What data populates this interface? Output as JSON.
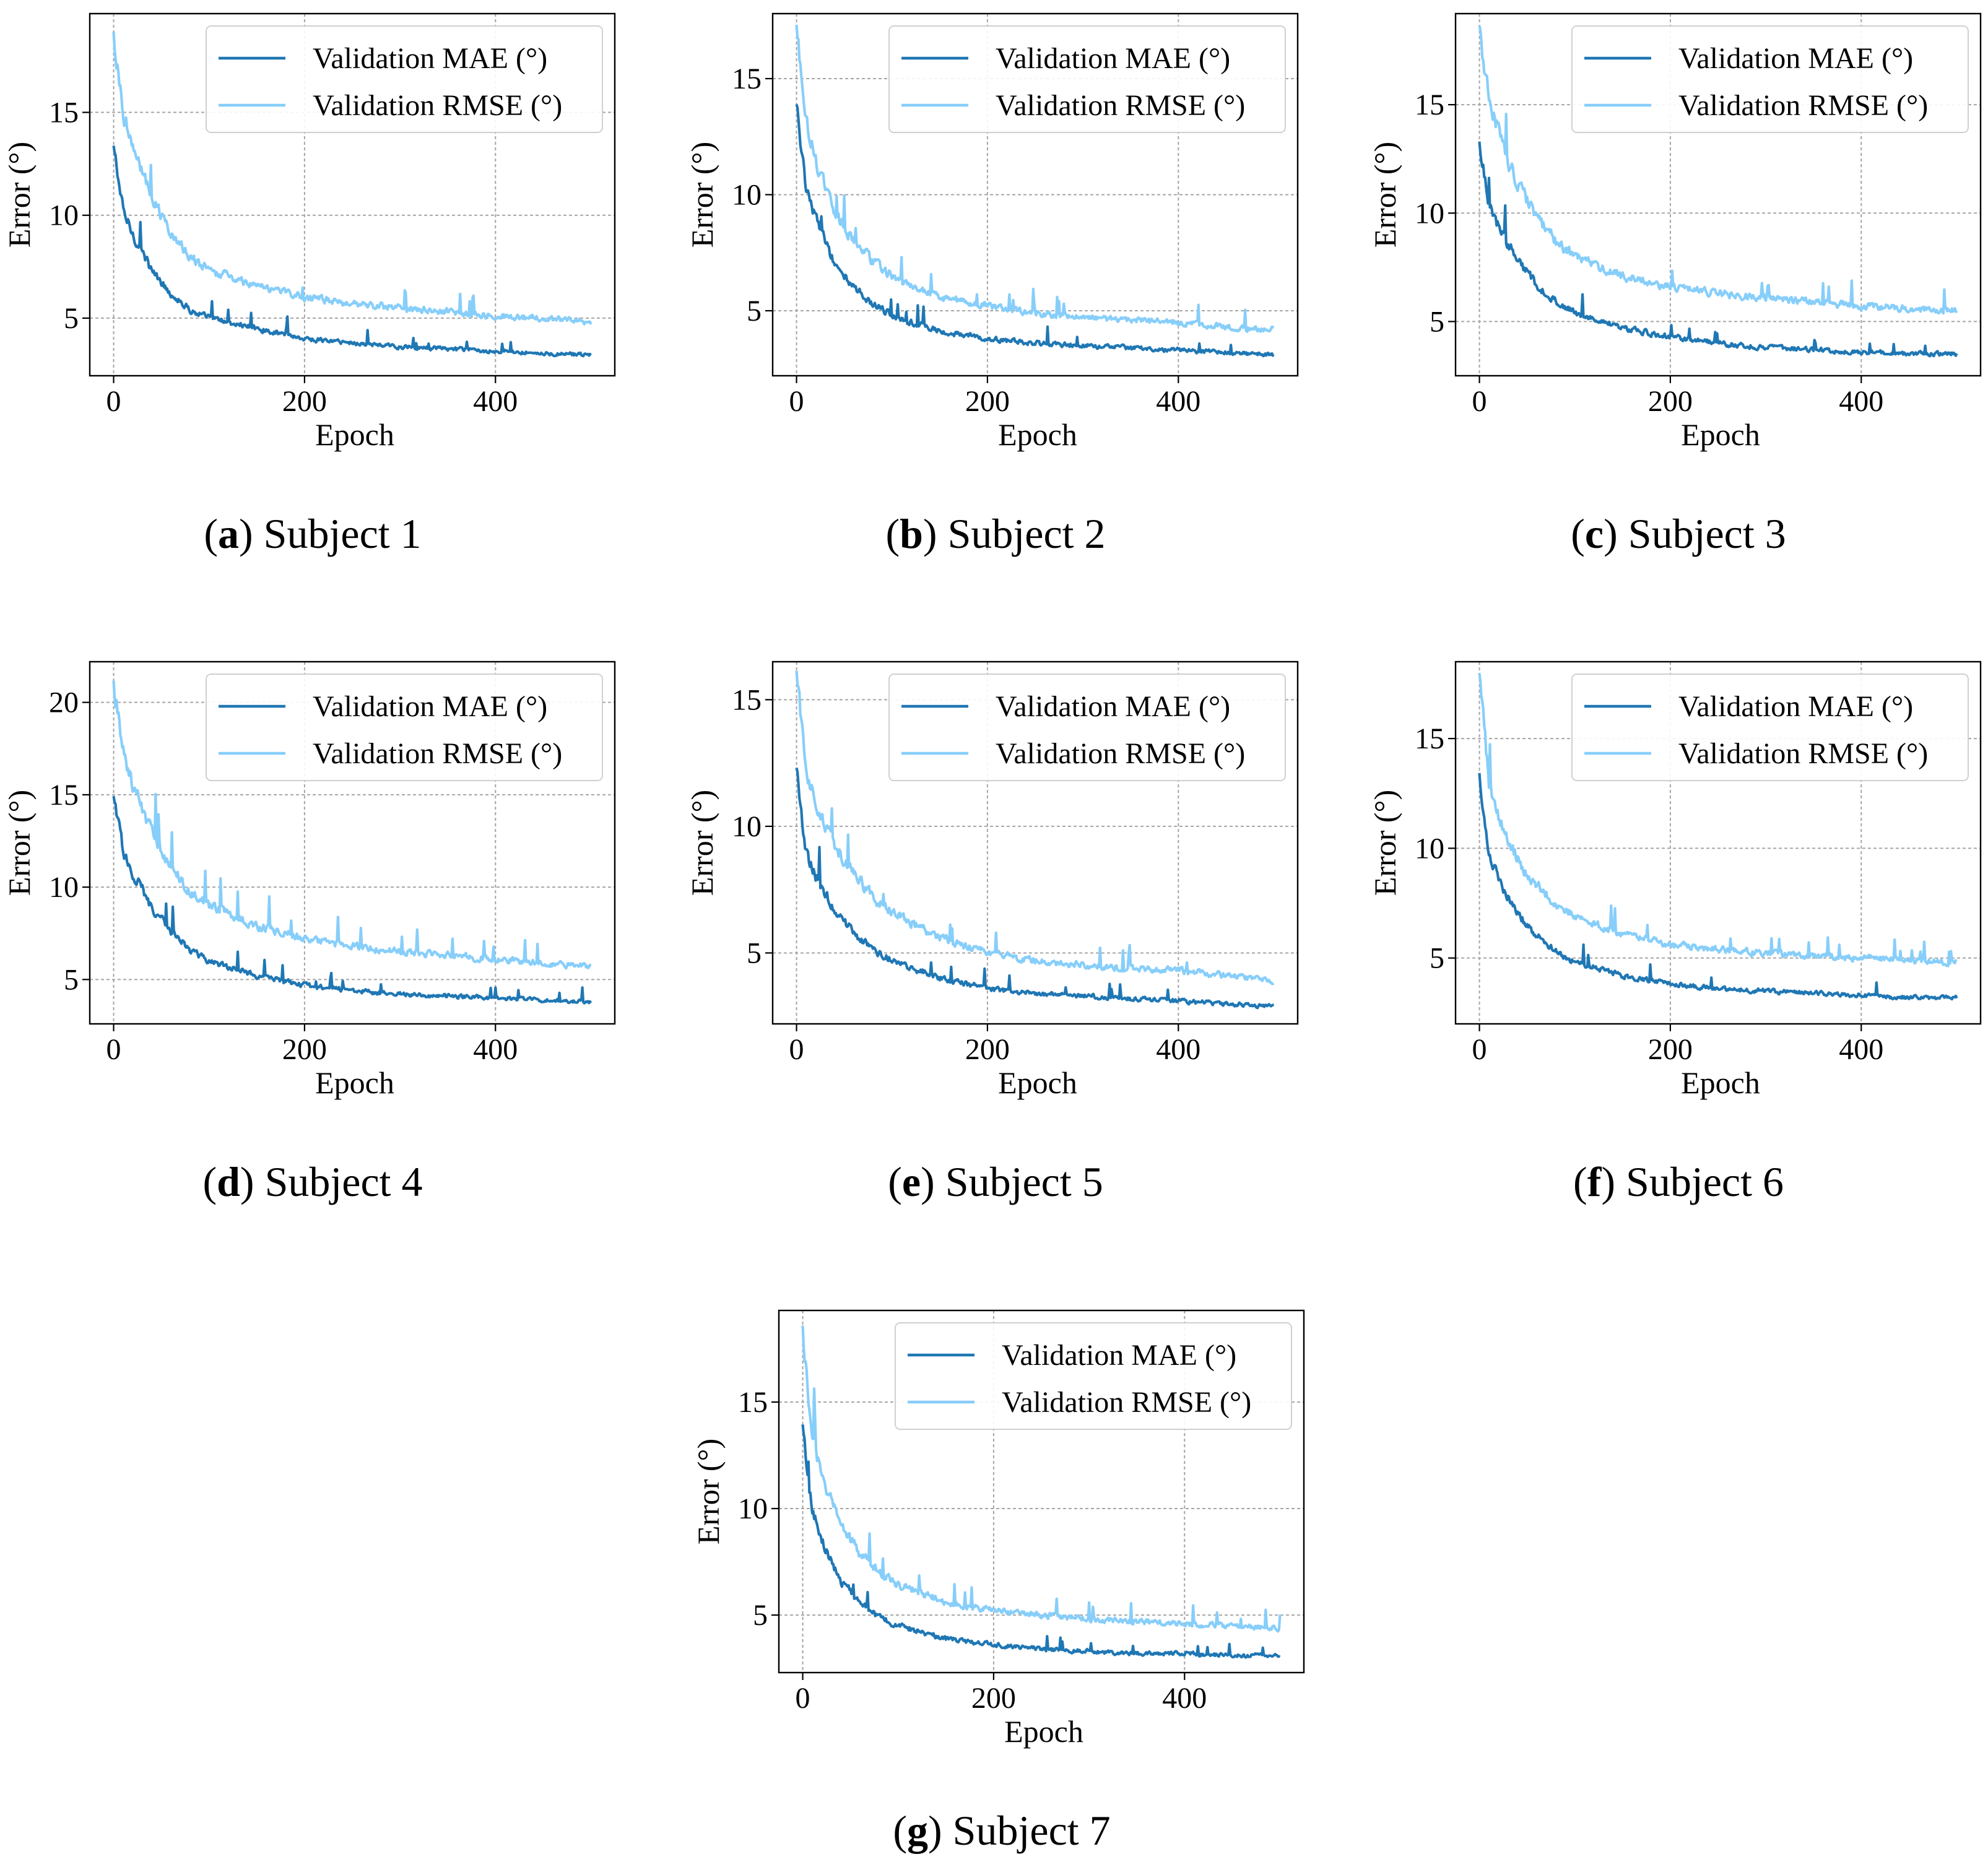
{
  "figure": {
    "legend_labels": [
      "Validation MAE (°)",
      "Validation RMSE (°)"
    ],
    "colors": {
      "mae": "#1f77b4",
      "rmse": "#87cefa",
      "grid": "#a6a6a6",
      "axis": "#000000"
    }
  },
  "chart_data": [
    {
      "type": "line",
      "caption_letter": "a",
      "caption_text": "Subject 1",
      "xlabel": "Epoch",
      "ylabel": "Error (°)",
      "xlim": [
        -25,
        525
      ],
      "ylim": [
        2.2,
        19.8
      ],
      "xticks": [
        0,
        200,
        400
      ],
      "yticks": [
        5,
        10,
        15
      ],
      "grid": true,
      "legend_position": "upper-right",
      "series": [
        {
          "name": "Validation MAE (°)",
          "x": [
            0,
            10,
            20,
            40,
            60,
            80,
            100,
            150,
            200,
            250,
            300,
            350,
            400,
            450,
            500
          ],
          "y": [
            13.3,
            10.2,
            9.1,
            7.3,
            6.2,
            5.4,
            5.0,
            4.5,
            4.0,
            3.8,
            3.6,
            3.5,
            3.4,
            3.3,
            3.2
          ]
        },
        {
          "name": "Validation RMSE (°)",
          "x": [
            0,
            10,
            20,
            40,
            60,
            80,
            100,
            150,
            200,
            250,
            300,
            350,
            400,
            450,
            500
          ],
          "y": [
            18.8,
            15.0,
            13.3,
            10.8,
            9.1,
            8.0,
            7.3,
            6.6,
            6.0,
            5.7,
            5.5,
            5.3,
            5.1,
            5.0,
            4.8
          ]
        }
      ]
    },
    {
      "type": "line",
      "caption_letter": "b",
      "caption_text": "Subject 2",
      "xlabel": "Epoch",
      "ylabel": "Error (°)",
      "xlim": [
        -25,
        525
      ],
      "ylim": [
        2.2,
        17.8
      ],
      "xticks": [
        0,
        200,
        400
      ],
      "yticks": [
        5,
        10,
        15
      ],
      "grid": true,
      "legend_position": "upper-right",
      "series": [
        {
          "name": "Validation MAE (°)",
          "x": [
            0,
            10,
            20,
            40,
            60,
            80,
            100,
            150,
            200,
            250,
            300,
            350,
            400,
            450,
            500
          ],
          "y": [
            13.8,
            10.4,
            9.0,
            7.0,
            6.0,
            5.3,
            4.8,
            4.1,
            3.8,
            3.6,
            3.5,
            3.4,
            3.3,
            3.2,
            3.1
          ]
        },
        {
          "name": "Validation RMSE (°)",
          "x": [
            0,
            10,
            20,
            40,
            60,
            80,
            100,
            150,
            200,
            250,
            300,
            350,
            400,
            450,
            500
          ],
          "y": [
            17.2,
            13.3,
            11.5,
            9.2,
            8.0,
            7.1,
            6.5,
            5.6,
            5.2,
            4.9,
            4.7,
            4.6,
            4.5,
            4.3,
            4.2
          ]
        }
      ]
    },
    {
      "type": "line",
      "caption_letter": "c",
      "caption_text": "Subject 3",
      "xlabel": "Epoch",
      "ylabel": "Error (°)",
      "xlim": [
        -25,
        525
      ],
      "ylim": [
        2.5,
        19.2
      ],
      "xticks": [
        0,
        200,
        400
      ],
      "yticks": [
        5,
        10,
        15
      ],
      "grid": true,
      "legend_position": "upper-right",
      "series": [
        {
          "name": "Validation MAE (°)",
          "x": [
            0,
            10,
            20,
            40,
            60,
            80,
            100,
            150,
            200,
            250,
            300,
            350,
            400,
            450,
            500
          ],
          "y": [
            13.2,
            10.5,
            9.4,
            7.8,
            6.7,
            5.9,
            5.4,
            4.7,
            4.3,
            4.0,
            3.8,
            3.7,
            3.6,
            3.5,
            3.5
          ]
        },
        {
          "name": "Validation RMSE (°)",
          "x": [
            0,
            10,
            20,
            40,
            60,
            80,
            100,
            150,
            200,
            250,
            300,
            350,
            400,
            450,
            500
          ],
          "y": [
            18.5,
            15.3,
            13.7,
            11.3,
            9.8,
            8.7,
            8.0,
            7.1,
            6.6,
            6.3,
            6.1,
            5.9,
            5.7,
            5.6,
            5.5
          ]
        }
      ]
    },
    {
      "type": "line",
      "caption_letter": "d",
      "caption_text": "Subject 4",
      "xlabel": "Epoch",
      "ylabel": "Error (°)",
      "xlim": [
        -25,
        525
      ],
      "ylim": [
        2.6,
        22.2
      ],
      "xticks": [
        0,
        200,
        400
      ],
      "yticks": [
        5,
        10,
        15,
        20
      ],
      "grid": true,
      "legend_position": "upper-right",
      "series": [
        {
          "name": "Validation MAE (°)",
          "x": [
            0,
            10,
            20,
            40,
            60,
            80,
            100,
            150,
            200,
            250,
            300,
            350,
            400,
            450,
            500
          ],
          "y": [
            14.8,
            12.0,
            10.8,
            8.9,
            7.6,
            6.6,
            6.0,
            5.2,
            4.7,
            4.4,
            4.2,
            4.1,
            4.0,
            3.9,
            3.8
          ]
        },
        {
          "name": "Validation RMSE (°)",
          "x": [
            0,
            10,
            20,
            40,
            60,
            80,
            100,
            150,
            200,
            250,
            300,
            350,
            400,
            450,
            500
          ],
          "y": [
            21.0,
            17.3,
            15.6,
            12.9,
            11.1,
            9.8,
            9.0,
            7.9,
            7.2,
            6.8,
            6.5,
            6.3,
            6.1,
            5.9,
            5.7
          ]
        }
      ]
    },
    {
      "type": "line",
      "caption_letter": "e",
      "caption_text": "Subject 5",
      "xlabel": "Epoch",
      "ylabel": "Error (°)",
      "xlim": [
        -25,
        525
      ],
      "ylim": [
        2.2,
        16.5
      ],
      "xticks": [
        0,
        200,
        400
      ],
      "yticks": [
        5,
        10,
        15
      ],
      "grid": true,
      "legend_position": "upper-right",
      "series": [
        {
          "name": "Validation MAE (°)",
          "x": [
            0,
            10,
            20,
            40,
            60,
            80,
            100,
            150,
            200,
            250,
            300,
            350,
            400,
            450,
            500
          ],
          "y": [
            12.2,
            9.0,
            8.0,
            6.7,
            5.8,
            5.1,
            4.7,
            4.0,
            3.6,
            3.4,
            3.3,
            3.2,
            3.1,
            3.0,
            2.9
          ]
        },
        {
          "name": "Validation RMSE (°)",
          "x": [
            0,
            10,
            20,
            40,
            60,
            80,
            100,
            150,
            200,
            250,
            300,
            350,
            400,
            450,
            500
          ],
          "y": [
            16.0,
            12.3,
            11.0,
            9.3,
            8.1,
            7.2,
            6.6,
            5.6,
            5.0,
            4.7,
            4.5,
            4.4,
            4.3,
            4.1,
            3.9
          ]
        }
      ]
    },
    {
      "type": "line",
      "caption_letter": "f",
      "caption_text": "Subject 6",
      "xlabel": "Epoch",
      "ylabel": "Error (°)",
      "xlim": [
        -25,
        525
      ],
      "ylim": [
        2.0,
        18.5
      ],
      "xticks": [
        0,
        200,
        400
      ],
      "yticks": [
        5,
        10,
        15
      ],
      "grid": true,
      "legend_position": "upper-right",
      "series": [
        {
          "name": "Validation MAE (°)",
          "x": [
            0,
            10,
            20,
            40,
            60,
            80,
            100,
            150,
            200,
            250,
            300,
            350,
            400,
            450,
            500
          ],
          "y": [
            13.3,
            9.8,
            8.6,
            7.0,
            6.0,
            5.3,
            4.8,
            4.2,
            3.8,
            3.6,
            3.5,
            3.4,
            3.3,
            3.2,
            3.2
          ]
        },
        {
          "name": "Validation RMSE (°)",
          "x": [
            0,
            10,
            20,
            40,
            60,
            80,
            100,
            150,
            200,
            250,
            300,
            350,
            400,
            450,
            500
          ],
          "y": [
            17.8,
            13.0,
            11.5,
            9.5,
            8.3,
            7.5,
            6.9,
            6.1,
            5.6,
            5.4,
            5.2,
            5.1,
            5.0,
            4.9,
            4.8
          ]
        }
      ]
    },
    {
      "type": "line",
      "caption_letter": "g",
      "caption_text": "Subject 7",
      "xlabel": "Epoch",
      "ylabel": "Error (°)",
      "xlim": [
        -25,
        525
      ],
      "ylim": [
        2.3,
        19.3
      ],
      "xticks": [
        0,
        200,
        400
      ],
      "yticks": [
        5,
        10,
        15
      ],
      "grid": true,
      "legend_position": "upper-right",
      "series": [
        {
          "name": "Validation MAE (°)",
          "x": [
            0,
            10,
            20,
            40,
            60,
            80,
            100,
            150,
            200,
            250,
            300,
            350,
            400,
            450,
            500
          ],
          "y": [
            13.8,
            9.9,
            8.5,
            6.6,
            5.6,
            4.9,
            4.5,
            3.9,
            3.6,
            3.4,
            3.3,
            3.2,
            3.2,
            3.1,
            3.1
          ]
        },
        {
          "name": "Validation RMSE (°)",
          "x": [
            0,
            10,
            20,
            40,
            60,
            80,
            100,
            150,
            200,
            250,
            300,
            350,
            400,
            450,
            500
          ],
          "y": [
            18.4,
            13.2,
            11.5,
            9.2,
            7.9,
            7.0,
            6.4,
            5.6,
            5.2,
            5.0,
            4.8,
            4.7,
            4.6,
            4.5,
            4.4
          ]
        }
      ]
    }
  ]
}
